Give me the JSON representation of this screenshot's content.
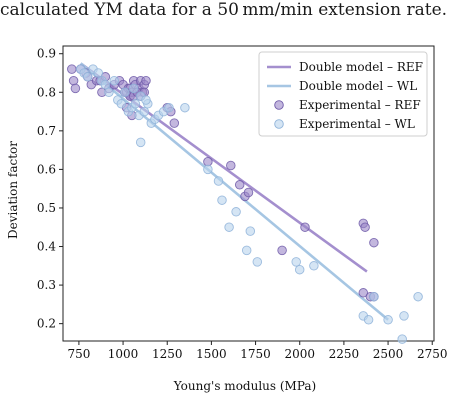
{
  "caption": "calculated YM data for a 50 mm/min extension rate.",
  "chart_data": {
    "type": "scatter",
    "xlabel": "Young's modulus (MPa)",
    "ylabel": "Deviation factor",
    "xlim": [
      660,
      2760
    ],
    "ylim": [
      0.155,
      0.92
    ],
    "xticks": [
      750,
      1000,
      1250,
      1500,
      1750,
      2000,
      2250,
      2500,
      2750
    ],
    "yticks": [
      0.2,
      0.3,
      0.4,
      0.5,
      0.6,
      0.7,
      0.8,
      0.9
    ],
    "grid": false,
    "legend_position": "top-right",
    "colors": {
      "ref_line": "#a48fce",
      "wl_line": "#a6c6e3",
      "ref_point_fill": "#9b87c8",
      "ref_point_edge": "#6f5aa8",
      "wl_point_fill": "#b9d4ec",
      "wl_point_edge": "#8fb3d9"
    },
    "series": [
      {
        "name": "Double model – REF",
        "kind": "line",
        "x": [
          760,
          2380
        ],
        "y": [
          0.875,
          0.335
        ]
      },
      {
        "name": "Double model – WL",
        "kind": "line",
        "x": [
          760,
          2500
        ],
        "y": [
          0.875,
          0.21
        ]
      },
      {
        "name": "Experimental – REF",
        "kind": "scatter",
        "x": [
          710,
          720,
          730,
          760,
          790,
          800,
          820,
          850,
          870,
          880,
          900,
          920,
          950,
          980,
          1000,
          1010,
          1020,
          1030,
          1040,
          1050,
          1060,
          1070,
          1080,
          1090,
          1100,
          1110,
          1120,
          1130,
          1040,
          1060,
          1080,
          1100,
          1120,
          1020,
          1050,
          1250,
          1270,
          1290,
          1480,
          1610,
          1660,
          1690,
          1710,
          1900,
          2030,
          2360,
          2370,
          2420,
          2360,
          2400,
          2420
        ],
        "y": [
          0.86,
          0.83,
          0.81,
          0.86,
          0.85,
          0.84,
          0.82,
          0.83,
          0.83,
          0.8,
          0.84,
          0.81,
          0.82,
          0.83,
          0.82,
          0.8,
          0.8,
          0.81,
          0.81,
          0.8,
          0.83,
          0.82,
          0.8,
          0.81,
          0.83,
          0.8,
          0.82,
          0.83,
          0.79,
          0.79,
          0.8,
          0.79,
          0.8,
          0.76,
          0.74,
          0.76,
          0.75,
          0.72,
          0.62,
          0.61,
          0.56,
          0.53,
          0.54,
          0.39,
          0.45,
          0.46,
          0.45,
          0.41,
          0.28,
          0.27,
          0.27
        ]
      },
      {
        "name": "Experimental – WL",
        "kind": "scatter",
        "x": [
          760,
          780,
          800,
          830,
          860,
          880,
          900,
          920,
          950,
          970,
          990,
          1010,
          1030,
          1050,
          1070,
          1090,
          1100,
          1120,
          1140,
          1160,
          1180,
          1200,
          1230,
          1260,
          1350,
          1060,
          1100,
          1130,
          1480,
          1540,
          1560,
          1600,
          1640,
          1700,
          1720,
          1760,
          1980,
          2000,
          2080,
          2360,
          2390,
          2420,
          2500,
          2580,
          2590,
          2670
        ],
        "y": [
          0.86,
          0.85,
          0.84,
          0.86,
          0.85,
          0.83,
          0.82,
          0.8,
          0.83,
          0.78,
          0.77,
          0.8,
          0.75,
          0.76,
          0.77,
          0.74,
          0.67,
          0.75,
          0.77,
          0.72,
          0.73,
          0.74,
          0.75,
          0.76,
          0.76,
          0.81,
          0.79,
          0.78,
          0.6,
          0.57,
          0.52,
          0.45,
          0.49,
          0.39,
          0.44,
          0.36,
          0.36,
          0.34,
          0.35,
          0.22,
          0.21,
          0.27,
          0.21,
          0.16,
          0.22,
          0.27
        ]
      }
    ]
  }
}
